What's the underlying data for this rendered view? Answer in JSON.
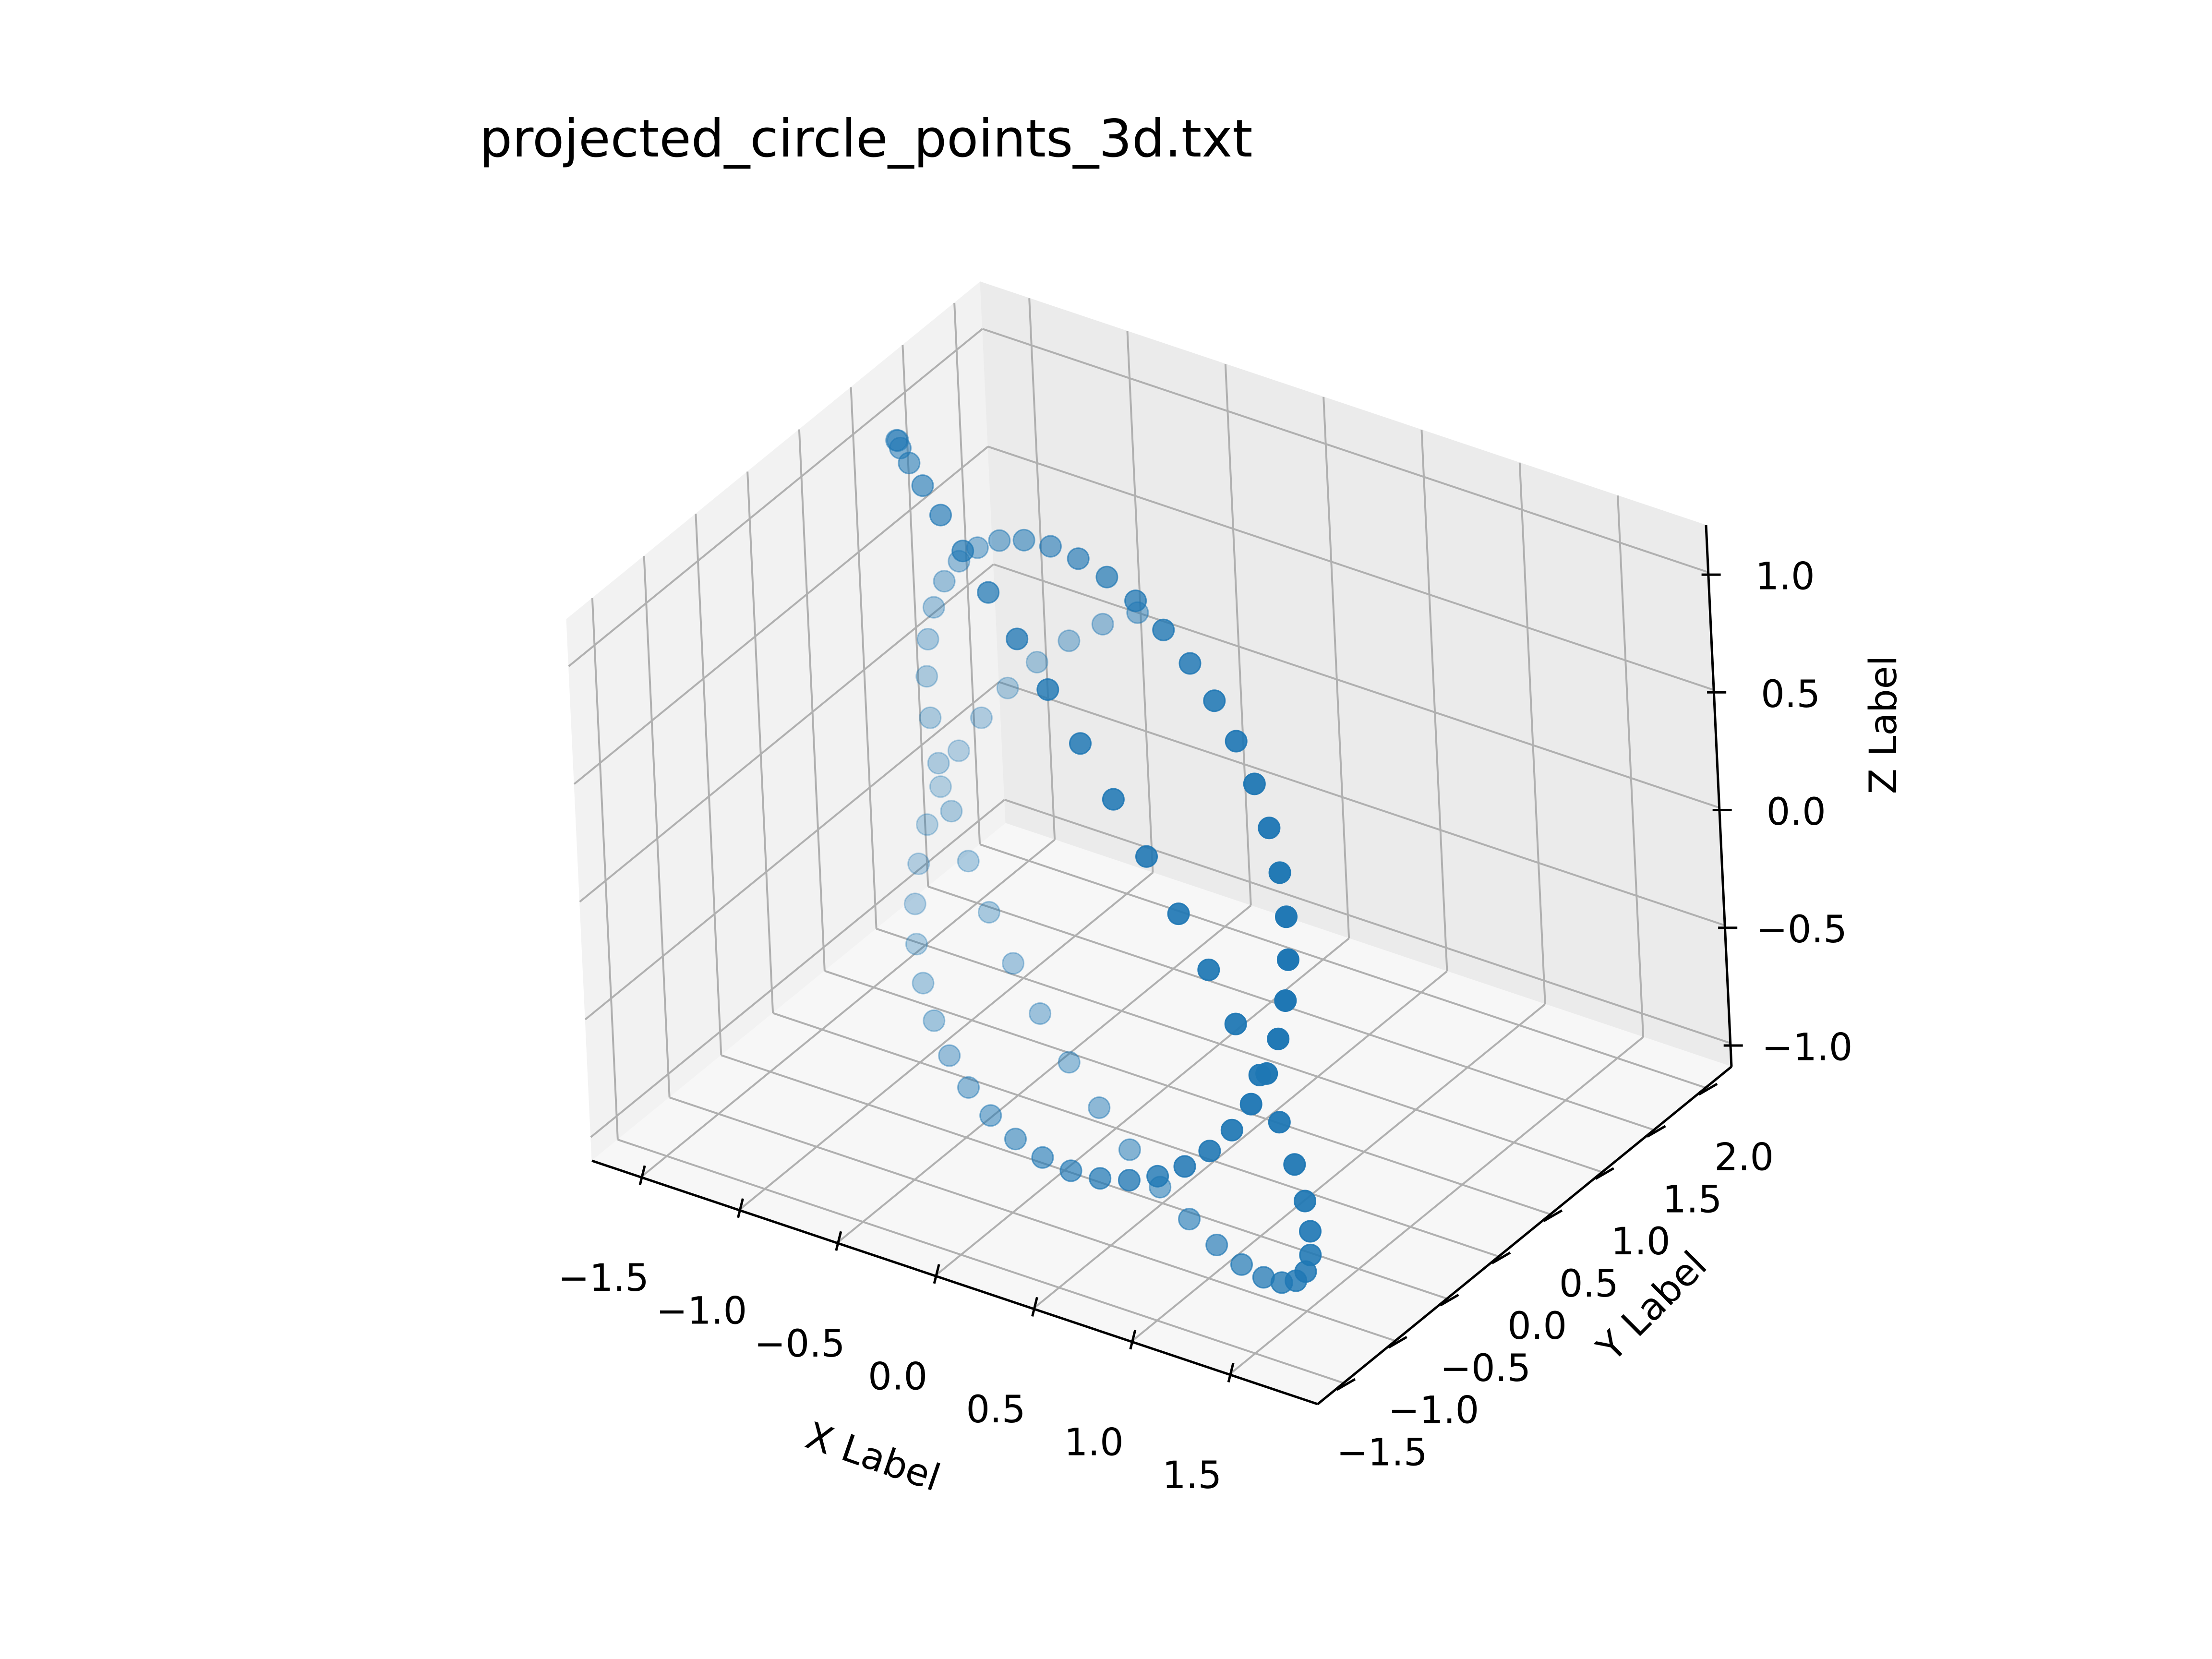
{
  "chart_data": {
    "type": "scatter",
    "projection": "3d",
    "title": "projected_circle_points_3d.txt",
    "xlabel": "X Label",
    "ylabel": "Y Label",
    "zlabel": "Z Label",
    "xlim": [
      -1.75,
      1.95
    ],
    "ylim": [
      -1.75,
      2.25
    ],
    "zlim": [
      -1.1,
      1.2
    ],
    "xticks": [
      -1.5,
      -1.0,
      -0.5,
      0.0,
      0.5,
      1.0,
      1.5
    ],
    "yticks": [
      -1.5,
      -1.0,
      -0.5,
      0.0,
      0.5,
      1.0,
      1.5,
      2.0
    ],
    "zticks": [
      -1.0,
      -0.5,
      0.0,
      0.5,
      1.0
    ],
    "xtick_labels": [
      "−1.5",
      "−1.0",
      "−0.5",
      "0.0",
      "0.5",
      "1.0",
      "1.5"
    ],
    "ytick_labels": [
      "−1.5",
      "−1.0",
      "−0.5",
      "0.0",
      "0.5",
      "1.0",
      "1.5",
      "2.0"
    ],
    "ztick_labels": [
      "−1.0",
      "−0.5",
      "0.0",
      "0.5",
      "1.0"
    ],
    "grid": true,
    "marker_color": "#1f77b4",
    "depth_shading": true,
    "points": [
      {
        "x": -1.537,
        "y": 1.031,
        "z": 1.022
      },
      {
        "x": -1.468,
        "y": 0.895,
        "z": 1.091
      },
      {
        "x": -1.365,
        "y": 0.741,
        "z": 1.142
      },
      {
        "x": -1.23,
        "y": 0.574,
        "z": 1.176
      },
      {
        "x": -1.066,
        "y": 0.395,
        "z": 1.19
      },
      {
        "x": -0.876,
        "y": 0.208,
        "z": 1.185
      },
      {
        "x": -0.663,
        "y": 0.016,
        "z": 1.161
      },
      {
        "x": -0.434,
        "y": -0.177,
        "z": 1.118
      },
      {
        "x": -0.191,
        "y": -0.366,
        "z": 1.056
      },
      {
        "x": 0.059,
        "y": -0.551,
        "z": 0.977
      },
      {
        "x": 0.311,
        "y": -0.725,
        "z": 0.881
      },
      {
        "x": 0.559,
        "y": -0.887,
        "z": 0.771
      },
      {
        "x": 0.798,
        "y": -1.033,
        "z": 0.647
      },
      {
        "x": 1.021,
        "y": -1.161,
        "z": 0.512
      },
      {
        "x": 1.222,
        "y": -1.267,
        "z": 0.368
      },
      {
        "x": 1.396,
        "y": -1.351,
        "z": 0.217
      },
      {
        "x": 1.54,
        "y": -1.409,
        "z": 0.061
      },
      {
        "x": 1.649,
        "y": -1.442,
        "z": -0.097
      },
      {
        "x": 1.721,
        "y": -1.449,
        "z": -0.254
      },
      {
        "x": 1.755,
        "y": -1.429,
        "z": -0.407
      },
      {
        "x": 1.75,
        "y": -1.384,
        "z": -0.553
      },
      {
        "x": 1.706,
        "y": -1.314,
        "z": -0.691
      },
      {
        "x": 1.625,
        "y": -1.22,
        "z": -0.818
      },
      {
        "x": 1.508,
        "y": -1.104,
        "z": -0.931
      },
      {
        "x": 1.359,
        "y": -0.969,
        "z": -1.029
      },
      {
        "x": 1.181,
        "y": -0.816,
        "z": -1.111
      },
      {
        "x": 0.978,
        "y": -0.65,
        "z": -1.173
      },
      {
        "x": 0.755,
        "y": -0.472,
        "z": -1.216
      },
      {
        "x": 0.516,
        "y": -0.287,
        "z": -1.239
      },
      {
        "x": 0.267,
        "y": -0.097,
        "z": -1.241
      },
      {
        "x": 0.013,
        "y": 0.093,
        "z": -1.221
      },
      {
        "x": -0.24,
        "y": 0.282,
        "z": -1.181
      },
      {
        "x": -0.486,
        "y": 0.464,
        "z": -1.122
      },
      {
        "x": -0.721,
        "y": 0.637,
        "z": -1.043
      },
      {
        "x": -0.937,
        "y": 0.797,
        "z": -0.947
      },
      {
        "x": -1.13,
        "y": 0.942,
        "z": -0.836
      },
      {
        "x": -1.295,
        "y": 1.068,
        "z": -0.71
      },
      {
        "x": -1.429,
        "y": 1.173,
        "z": -0.573
      },
      {
        "x": -1.529,
        "y": 1.254,
        "z": -0.426
      },
      {
        "x": -1.592,
        "y": 1.31,
        "z": -0.271
      },
      {
        "x": -1.616,
        "y": 1.339,
        "z": -0.112
      },
      {
        "x": -1.602,
        "y": 1.341,
        "z": 0.049
      },
      {
        "x": -1.55,
        "y": 1.316,
        "z": 0.208
      },
      {
        "x": -1.461,
        "y": 1.265,
        "z": 0.362
      },
      {
        "x": -1.337,
        "y": 1.188,
        "z": 0.509
      },
      {
        "x": -1.182,
        "y": 1.087,
        "z": 0.646
      },
      {
        "x": -0.999,
        "y": 0.965,
        "z": 0.771
      },
      {
        "x": -0.792,
        "y": 0.822,
        "z": 0.882
      },
      {
        "x": -0.567,
        "y": 0.662,
        "z": 0.976
      },
      {
        "x": -0.329,
        "y": 0.487,
        "z": 1.053
      },
      {
        "x": -0.082,
        "y": 0.302,
        "z": 1.11
      },
      {
        "x": 0.168,
        "y": 0.109,
        "z": 1.148
      },
      {
        "x": 0.415,
        "y": -0.088,
        "z": 1.164
      },
      {
        "x": 0.654,
        "y": -0.285,
        "z": 1.159
      },
      {
        "x": 0.879,
        "y": -0.479,
        "z": 1.133
      },
      {
        "x": 1.086,
        "y": -0.666,
        "z": 1.086
      },
      {
        "x": 1.269,
        "y": -0.843,
        "z": 1.019
      },
      {
        "x": 1.425,
        "y": -1.006,
        "z": 0.934
      },
      {
        "x": 1.55,
        "y": -1.151,
        "z": 0.831
      },
      {
        "x": 1.642,
        "y": -1.276,
        "z": 0.714
      },
      {
        "x": 1.698,
        "y": -1.378,
        "z": 0.584
      },
      {
        "x": 1.717,
        "y": -1.455,
        "z": 0.443
      },
      {
        "x": 1.698,
        "y": -1.505,
        "z": 0.293
      },
      {
        "x": 1.642,
        "y": -1.527,
        "z": 0.138
      },
      {
        "x": 1.55,
        "y": -1.52,
        "z": -0.02
      },
      {
        "x": 1.425,
        "y": -1.485,
        "z": -0.178
      },
      {
        "x": 1.269,
        "y": -1.421,
        "z": -0.333
      },
      {
        "x": 1.086,
        "y": -1.331,
        "z": -0.482
      },
      {
        "x": 0.879,
        "y": -1.215,
        "z": -0.623
      },
      {
        "x": 0.654,
        "y": -1.077,
        "z": -0.752
      },
      {
        "x": 0.415,
        "y": -0.918,
        "z": -0.868
      },
      {
        "x": 0.168,
        "y": -0.742,
        "z": -0.968
      },
      {
        "x": -0.082,
        "y": -0.551,
        "z": -1.05
      },
      {
        "x": -0.329,
        "y": -0.351,
        "z": -1.112
      },
      {
        "x": -0.567,
        "y": -0.144,
        "z": -1.153
      },
      {
        "x": -0.792,
        "y": 0.066,
        "z": -1.172
      },
      {
        "x": -0.999,
        "y": 0.274,
        "z": -1.169
      },
      {
        "x": -1.182,
        "y": 0.476,
        "z": -1.144
      },
      {
        "x": -1.337,
        "y": 0.669,
        "z": -1.097
      },
      {
        "x": -1.461,
        "y": 0.848,
        "z": -1.03
      },
      {
        "x": -1.55,
        "y": 1.012,
        "z": -0.943
      },
      {
        "x": -1.602,
        "y": 1.156,
        "z": -0.839
      },
      {
        "x": -1.616,
        "y": 1.278,
        "z": -0.72
      },
      {
        "x": -1.592,
        "y": 1.376,
        "z": -0.587
      },
      {
        "x": -1.529,
        "y": 1.448,
        "z": -0.443
      },
      {
        "x": -1.429,
        "y": 1.493,
        "z": -0.291
      },
      {
        "x": -1.295,
        "y": 1.51,
        "z": -0.133
      },
      {
        "x": -1.13,
        "y": 1.498,
        "z": 0.027
      },
      {
        "x": -0.937,
        "y": 1.458,
        "z": 0.186
      },
      {
        "x": -0.721,
        "y": 1.391,
        "z": 0.341
      },
      {
        "x": -0.486,
        "y": 1.298,
        "z": 0.489
      }
    ]
  }
}
